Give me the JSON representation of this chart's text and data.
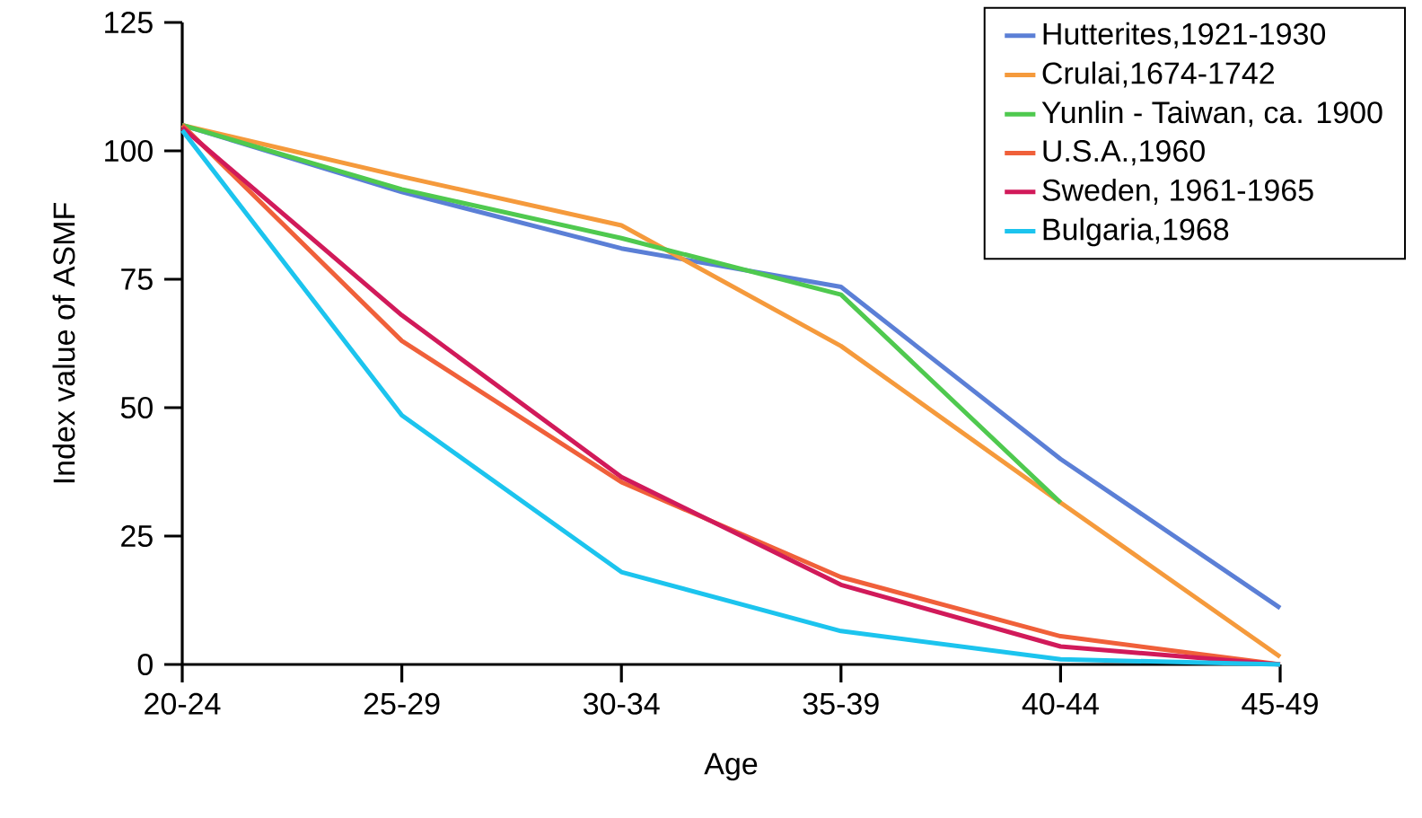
{
  "chart_data": {
    "type": "line",
    "xlabel": "Age",
    "ylabel": "Index value of ASMF",
    "categories": [
      "20-24",
      "25-29",
      "30-34",
      "35-39",
      "40-44",
      "45-49"
    ],
    "ylim": [
      0,
      125
    ],
    "yticks": [
      0,
      25,
      50,
      75,
      100,
      125
    ],
    "grid": false,
    "legend": "top right",
    "marker": "none",
    "line_style": "solid",
    "series": [
      {
        "name": "Hutterites,1921-1930",
        "color": "#5b7fd6",
        "values": [
          105,
          92,
          81,
          73.5,
          40,
          11
        ]
      },
      {
        "name": "Crulai,1674-1742",
        "color": "#f59a3c",
        "values": [
          105,
          95,
          85.5,
          62,
          31.5,
          1.5
        ]
      },
      {
        "name": "Yunlin - Taiwan, ca. 1900",
        "color": "#4fc94f",
        "values": [
          105,
          92.5,
          83,
          72,
          31.5,
          null
        ]
      },
      {
        "name": "U.S.A.,1960",
        "color": "#f0603a",
        "values": [
          105,
          63,
          35.5,
          17,
          5.5,
          0
        ]
      },
      {
        "name": "Sweden, 1961-1965",
        "color": "#d11a5a",
        "values": [
          104.5,
          68,
          36.5,
          15.5,
          3.5,
          0
        ]
      },
      {
        "name": "Bulgaria,1968",
        "color": "#1cc4ee",
        "values": [
          104,
          48.5,
          18,
          6.5,
          1,
          0
        ]
      }
    ]
  }
}
